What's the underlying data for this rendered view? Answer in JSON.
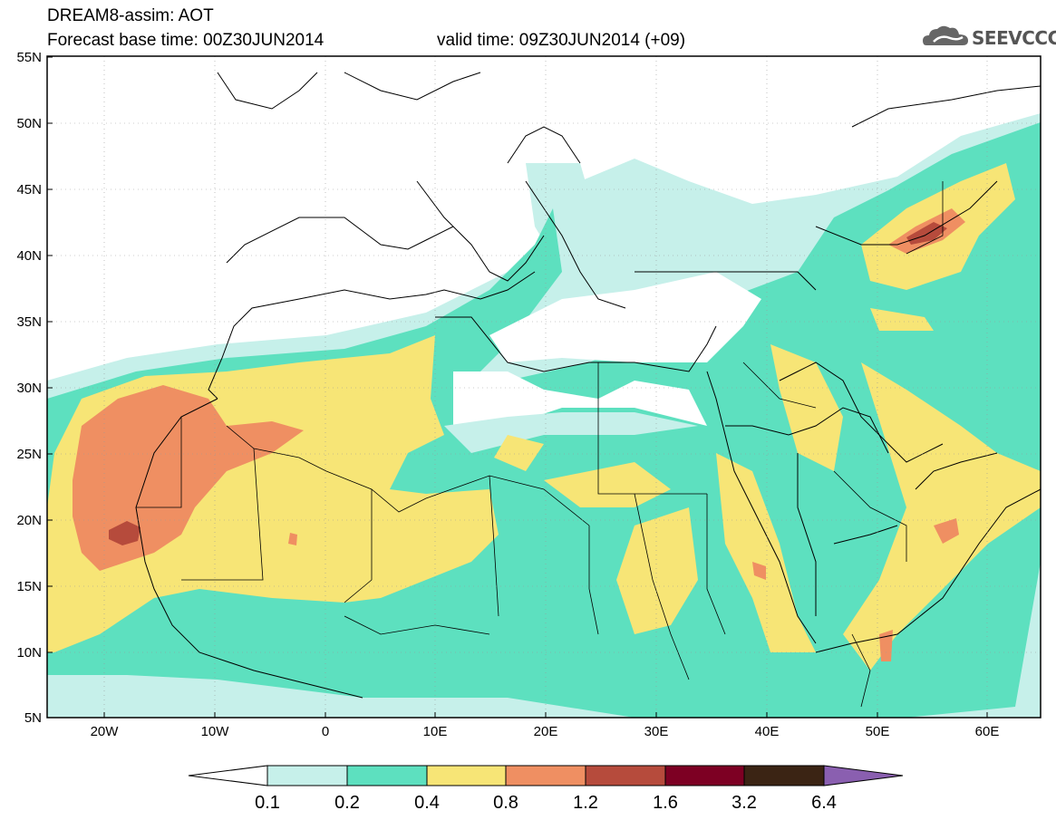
{
  "header": {
    "title": "DREAM8-assim: AOT",
    "base_time": "Forecast base time: 00Z30JUN2014",
    "valid_time": "valid time: 09Z30JUN2014 (+09)",
    "logo_text": "SEEVCCC"
  },
  "map": {
    "lat_labels": [
      "55N",
      "50N",
      "45N",
      "40N",
      "35N",
      "30N",
      "25N",
      "20N",
      "15N",
      "10N",
      "5N"
    ],
    "lon_labels": [
      "20W",
      "10W",
      "0",
      "10E",
      "20E",
      "30E",
      "40E",
      "50E",
      "60E"
    ],
    "lat_range": [
      5,
      55
    ],
    "lon_range": [
      -25,
      65
    ]
  },
  "legend": {
    "levels": [
      "0.1",
      "0.2",
      "0.4",
      "0.8",
      "1.2",
      "1.6",
      "3.2",
      "6.4"
    ],
    "colors": [
      "#ffffff",
      "#c6f0ea",
      "#5de0bf",
      "#f7e576",
      "#ef8f62",
      "#b64b3c",
      "#7d0023",
      "#3b2414",
      "#8a5fb0"
    ]
  },
  "icons": {
    "logo": "cloud-logo-icon"
  }
}
